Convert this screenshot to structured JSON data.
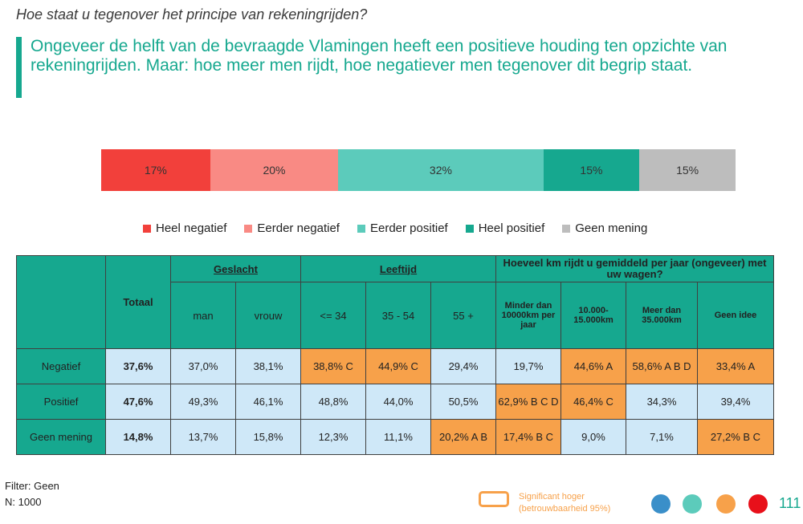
{
  "question": "Hoe staat u tegenover het principe van rekeningrijden?",
  "headline": "Ongeveer de helft van de bevraagde Vlamingen heeft een positieve houding ten opzichte van rekeningrijden. Maar: hoe meer men rijdt, hoe negatiever men tegenover dit begrip staat.",
  "chart_data": {
    "type": "bar",
    "orientation": "horizontal-stacked-100",
    "categories": [
      "Heel negatief",
      "Eerder negatief",
      "Eerder positief",
      "Heel positief",
      "Geen mening"
    ],
    "values": [
      17,
      20,
      32,
      15,
      15
    ],
    "labels": [
      "17%",
      "20%",
      "32%",
      "15%",
      "15%"
    ],
    "colors": [
      "#f2403b",
      "#f98a84",
      "#5ccbbb",
      "#16a88f",
      "#bdbdbd"
    ],
    "legend_position": "bottom"
  },
  "legend": [
    {
      "label": "Heel negatief",
      "color": "#f2403b"
    },
    {
      "label": "Eerder negatief",
      "color": "#f98a84"
    },
    {
      "label": "Eerder positief",
      "color": "#5ccbbb"
    },
    {
      "label": "Heel positief",
      "color": "#16a88f"
    },
    {
      "label": "Geen mening",
      "color": "#bdbdbd"
    }
  ],
  "table": {
    "totaal_label": "Totaal",
    "group_geslacht": "Geslacht",
    "group_leeftijd": "Leeftijd",
    "group_km": "Hoeveel km rijdt u gemiddeld per jaar (ongeveer) met uw wagen?",
    "cols": [
      "man",
      "vrouw",
      "<= 34",
      "35 - 54",
      "55 +",
      "Minder dan 10000km per jaar",
      "10.000-15.000km",
      "Meer dan 35.000km",
      "Geen idee"
    ],
    "rows": [
      {
        "label": "Negatief",
        "totaal": "37,6%",
        "values": [
          "37,0%",
          "38,1%",
          "38,8% C",
          "44,9% C",
          "29,4%",
          "19,7%",
          "44,6% A",
          "58,6% A B D",
          "33,4% A"
        ]
      },
      {
        "label": "Positief",
        "totaal": "47,6%",
        "values": [
          "49,3%",
          "46,1%",
          "48,8%",
          "44,0%",
          "50,5%",
          "62,9% B C D",
          "46,4% C",
          "34,3%",
          "39,4%"
        ]
      },
      {
        "label": "Geen mening",
        "totaal": "14,8%",
        "values": [
          "13,7%",
          "15,8%",
          "12,3%",
          "11,1%",
          "20,2% A B",
          "17,4% B C",
          "9,0%",
          "7,1%",
          "27,2% B C"
        ]
      }
    ],
    "significant": [
      [
        false,
        false,
        true,
        true,
        false,
        false,
        true,
        true,
        true
      ],
      [
        false,
        false,
        false,
        false,
        false,
        true,
        true,
        false,
        false
      ],
      [
        false,
        false,
        false,
        false,
        true,
        true,
        false,
        false,
        true
      ]
    ]
  },
  "filter": "Filter: Geen",
  "n": "N: 1000",
  "sig_legend": {
    "line1": "Significant hoger",
    "line2": "(betrouwbaarheid 95%)",
    "color": "#f7a14a"
  },
  "dots": [
    "#3a8fc9",
    "#5ccbbb",
    "#f7a14a",
    "#e8101a"
  ],
  "page_number": "111"
}
